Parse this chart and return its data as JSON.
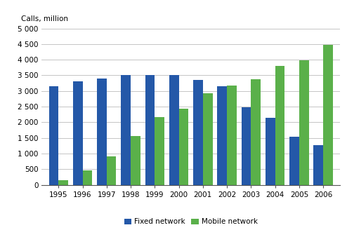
{
  "years": [
    1995,
    1996,
    1997,
    1998,
    1999,
    2000,
    2001,
    2002,
    2003,
    2004,
    2005,
    2006
  ],
  "fixed_network": [
    3150,
    3300,
    3400,
    3500,
    3500,
    3520,
    3350,
    3150,
    2480,
    2150,
    1540,
    1280
  ],
  "mobile_network": [
    150,
    470,
    900,
    1560,
    2160,
    2440,
    2920,
    3170,
    3380,
    3810,
    3990,
    4480
  ],
  "fixed_color": "#2458a8",
  "mobile_color": "#5ab04a",
  "ylabel": "Calls, million",
  "ylim": [
    0,
    5000
  ],
  "yticks": [
    0,
    500,
    1000,
    1500,
    2000,
    2500,
    3000,
    3500,
    4000,
    4500,
    5000
  ],
  "ytick_labels": [
    "0",
    "500",
    "1 000",
    "1 500",
    "2 000",
    "2 500",
    "3 000",
    "3 500",
    "4 000",
    "4 500",
    "5 000"
  ],
  "legend_labels": [
    "Fixed network",
    "Mobile network"
  ],
  "background_color": "#ffffff",
  "grid_color": "#bbbbbb"
}
